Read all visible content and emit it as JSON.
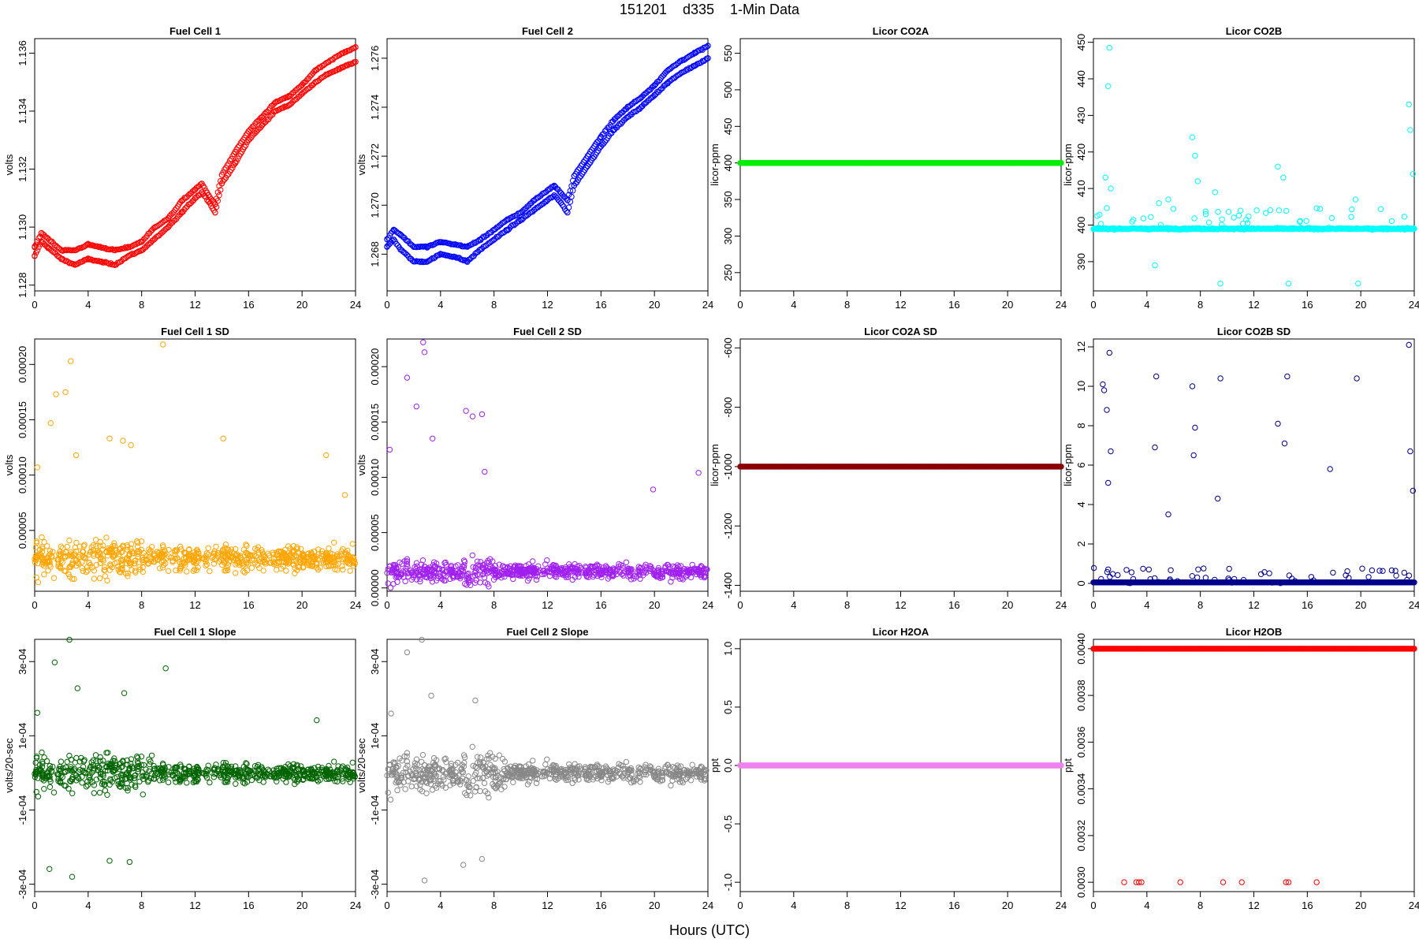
{
  "page": {
    "title": "151201    d335    1-Min Data",
    "xlabel": "Hours (UTC)"
  },
  "chart_data": [
    {
      "type": "scatter",
      "title": "Fuel Cell 1",
      "ylabel": "volts",
      "color": "#FF0000",
      "xlim": [
        0,
        24
      ],
      "ylim": [
        1.1278,
        1.1365
      ],
      "xticks": [
        0,
        4,
        8,
        12,
        16,
        20,
        24
      ],
      "yticks": [
        1.128,
        1.13,
        1.132,
        1.134,
        1.136
      ],
      "ytick_labels": [
        "1.128",
        "1.130",
        "1.132",
        "1.134",
        "1.136"
      ],
      "series": [
        {
          "x": [
            0,
            0.5,
            1,
            2,
            3,
            4,
            5,
            6,
            7,
            8,
            9,
            10,
            11,
            12,
            12.5,
            13,
            13.5,
            14,
            15,
            16,
            17,
            18,
            19,
            20,
            21,
            22,
            23,
            24
          ],
          "y": [
            1.129,
            1.1295,
            1.1293,
            1.1289,
            1.1287,
            1.1289,
            1.1288,
            1.1287,
            1.129,
            1.1292,
            1.1296,
            1.13,
            1.1305,
            1.131,
            1.1312,
            1.1309,
            1.1305,
            1.1315,
            1.1322,
            1.133,
            1.1335,
            1.134,
            1.1342,
            1.1346,
            1.135,
            1.1353,
            1.1355,
            1.1357
          ]
        },
        {
          "x": [
            0,
            0.5,
            1,
            2,
            3,
            4,
            5,
            6,
            7,
            8,
            9,
            10,
            11,
            12,
            12.5,
            13,
            13.5,
            14,
            15,
            16,
            17,
            18,
            19,
            20,
            21,
            22,
            23,
            24
          ],
          "y": [
            1.1293,
            1.1298,
            1.1296,
            1.1292,
            1.1292,
            1.1294,
            1.1293,
            1.1292,
            1.1293,
            1.1295,
            1.13,
            1.1303,
            1.1309,
            1.1313,
            1.1315,
            1.1311,
            1.1308,
            1.1318,
            1.1326,
            1.1333,
            1.1338,
            1.1343,
            1.1345,
            1.1349,
            1.1354,
            1.1357,
            1.136,
            1.1362
          ]
        }
      ]
    },
    {
      "type": "scatter",
      "title": "Fuel Cell 2",
      "ylabel": "volts",
      "color": "#0000FF",
      "xlim": [
        0,
        24
      ],
      "ylim": [
        1.2665,
        1.2768
      ],
      "xticks": [
        0,
        4,
        8,
        12,
        16,
        20,
        24
      ],
      "yticks": [
        1.268,
        1.27,
        1.272,
        1.274,
        1.276
      ],
      "ytick_labels": [
        "1.268",
        "1.270",
        "1.272",
        "1.274",
        "1.276"
      ],
      "series": [
        {
          "x": [
            0,
            0.5,
            1,
            2,
            3,
            4,
            5,
            6,
            7,
            8,
            9,
            10,
            11,
            12,
            12.5,
            13,
            13.5,
            14,
            15,
            16,
            17,
            18,
            19,
            20,
            21,
            22,
            23,
            24
          ],
          "y": [
            1.2683,
            1.2686,
            1.2682,
            1.2677,
            1.2677,
            1.268,
            1.2679,
            1.2677,
            1.2682,
            1.2686,
            1.269,
            1.2694,
            1.2698,
            1.2702,
            1.2704,
            1.2701,
            1.2697,
            1.2708,
            1.2716,
            1.2724,
            1.2731,
            1.2736,
            1.274,
            1.2745,
            1.275,
            1.2754,
            1.2757,
            1.276
          ]
        },
        {
          "x": [
            0,
            0.5,
            1,
            2,
            3,
            4,
            5,
            6,
            7,
            8,
            9,
            10,
            11,
            12,
            12.5,
            13,
            13.5,
            14,
            15,
            16,
            17,
            18,
            19,
            20,
            21,
            22,
            23,
            24
          ],
          "y": [
            1.2686,
            1.269,
            1.2688,
            1.2683,
            1.2683,
            1.2685,
            1.2684,
            1.2683,
            1.2686,
            1.269,
            1.2694,
            1.2697,
            1.2702,
            1.2706,
            1.2708,
            1.2705,
            1.2702,
            1.2712,
            1.272,
            1.2728,
            1.2735,
            1.274,
            1.2744,
            1.2749,
            1.2755,
            1.2759,
            1.2762,
            1.2765
          ]
        }
      ]
    },
    {
      "type": "scatter",
      "title": "Licor CO2A",
      "ylabel": "licor-ppm",
      "color": "#00EE00",
      "xlim": [
        0,
        24
      ],
      "ylim": [
        225,
        570
      ],
      "xticks": [
        0,
        4,
        8,
        12,
        16,
        20,
        24
      ],
      "yticks": [
        250,
        300,
        350,
        400,
        450,
        500,
        550
      ],
      "ytick_labels": [
        "250",
        "300",
        "350",
        "400",
        "450",
        "500",
        "550"
      ],
      "series": [
        {
          "x": [
            0,
            24
          ],
          "y": [
            400,
            400
          ]
        }
      ]
    },
    {
      "type": "scatter",
      "title": "Licor CO2B",
      "ylabel": "licor-ppm",
      "color": "#00FFFF",
      "xlim": [
        0,
        24
      ],
      "ylim": [
        382,
        451
      ],
      "xticks": [
        0,
        4,
        8,
        12,
        16,
        20,
        24
      ],
      "yticks": [
        390,
        400,
        410,
        420,
        430,
        440,
        450
      ],
      "ytick_labels": [
        "390",
        "400",
        "410",
        "420",
        "430",
        "440",
        "450"
      ],
      "series": [
        {
          "x": [
            0,
            24
          ],
          "y": [
            399,
            399
          ]
        },
        {
          "x": [
            0.9,
            1.1,
            1.2,
            1.3,
            4.6,
            4.9,
            5.6,
            7.4,
            7.6,
            7.8,
            8.4,
            9.1,
            9.5,
            13.8,
            14.2,
            14.6,
            19.6,
            19.8,
            23.6,
            23.7,
            23.9
          ],
          "y": [
            413,
            438,
            448.5,
            410,
            389,
            406,
            407,
            424,
            419,
            412,
            403,
            409,
            384,
            416,
            413,
            384,
            407,
            384,
            433,
            426,
            414
          ]
        }
      ]
    },
    {
      "type": "scatter",
      "title": "Fuel Cell 1 SD",
      "ylabel": "volts",
      "color": "#FFA500",
      "xlim": [
        0,
        24
      ],
      "ylim": [
        -5e-06,
        0.000223
      ],
      "xticks": [
        0,
        4,
        8,
        12,
        16,
        20,
        24
      ],
      "yticks": [
        5e-05,
        0.0001,
        0.00015,
        0.0002
      ],
      "ytick_labels": [
        "0.00005",
        "0.00010",
        "0.00015",
        "0.00020"
      ],
      "series": [
        {
          "x": [
            0.2,
            1.2,
            1.6,
            2.3,
            2.7,
            3.1,
            5.6,
            6.6,
            7.2,
            9.6,
            14.1,
            21.8,
            23.2
          ],
          "y": [
            0.000107,
            0.000147,
            0.000173,
            0.000175,
            0.000203,
            0.000118,
            0.000133,
            0.000131,
            0.000127,
            0.000218,
            0.000133,
            0.000118,
            8.2e-05
          ]
        }
      ]
    },
    {
      "type": "scatter",
      "title": "Fuel Cell 2 SD",
      "ylabel": "volts",
      "color": "#A020F0",
      "xlim": [
        0,
        24
      ],
      "ylim": [
        -3e-06,
        0.000225
      ],
      "xticks": [
        0,
        4,
        8,
        12,
        16,
        20,
        24
      ],
      "yticks": [
        0.0,
        5e-05,
        0.0001,
        0.00015,
        0.0002
      ],
      "ytick_labels": [
        "0.00000",
        "0.00005",
        "0.00010",
        "0.00015",
        "0.00020"
      ],
      "series": [
        {
          "x": [
            0.2,
            1.5,
            2.2,
            2.7,
            2.8,
            3.4,
            5.9,
            6.4,
            7.1,
            7.3,
            19.9,
            23.3
          ],
          "y": [
            0.000125,
            0.00019,
            0.000164,
            0.000222,
            0.000213,
            0.000135,
            0.00016,
            0.000155,
            0.000157,
            0.000105,
            8.9e-05,
            0.000104
          ]
        }
      ]
    },
    {
      "type": "scatter",
      "title": "Licor CO2A SD",
      "ylabel": "licor-ppm",
      "color": "#8B0000",
      "xlim": [
        0,
        24
      ],
      "ylim": [
        -1420,
        -570
      ],
      "xticks": [
        0,
        4,
        8,
        12,
        16,
        20,
        24
      ],
      "yticks": [
        -1400,
        -1200,
        -1000,
        -800,
        -600
      ],
      "ytick_labels": [
        "-1400",
        "-1200",
        "-1000",
        "-800",
        "-600"
      ],
      "series": [
        {
          "x": [
            0,
            24
          ],
          "y": [
            -1000,
            -1000
          ]
        }
      ]
    },
    {
      "type": "scatter",
      "title": "Licor CO2B SD",
      "ylabel": "licor-ppm",
      "color": "#00008B",
      "xlim": [
        0,
        24
      ],
      "ylim": [
        -0.4,
        12.4
      ],
      "xticks": [
        0,
        4,
        8,
        12,
        16,
        20,
        24
      ],
      "yticks": [
        0,
        2,
        4,
        6,
        8,
        10,
        12
      ],
      "ytick_labels": [
        "0",
        "2",
        "4",
        "6",
        "8",
        "10",
        "12"
      ],
      "series": [
        {
          "x": [
            0,
            24
          ],
          "y": [
            0.05,
            0.05
          ]
        },
        {
          "x": [
            0.7,
            0.8,
            1.0,
            1.1,
            1.2,
            1.3,
            4.6,
            4.7,
            5.6,
            7.4,
            7.5,
            7.6,
            9.3,
            9.5,
            13.8,
            14.3,
            14.5,
            17.7,
            19.7,
            23.6,
            23.7,
            23.9
          ],
          "y": [
            10.1,
            9.8,
            8.8,
            5.1,
            11.7,
            6.7,
            6.9,
            10.5,
            3.5,
            10.0,
            6.5,
            7.9,
            4.3,
            10.4,
            8.1,
            7.1,
            10.5,
            5.8,
            10.4,
            12.1,
            6.7,
            4.7
          ]
        }
      ]
    },
    {
      "type": "scatter",
      "title": "Fuel Cell 1 Slope",
      "ylabel": "volts/20-sec",
      "color": "#006400",
      "xlim": [
        0,
        24
      ],
      "ylim": [
        -0.00032,
        0.00036
      ],
      "xticks": [
        0,
        4,
        8,
        12,
        16,
        20,
        24
      ],
      "yticks": [
        -0.0003,
        -0.0001,
        0.0001,
        0.0003
      ],
      "ytick_labels": [
        "-3e-04",
        "-1e-04",
        "1e-04",
        "3e-04"
      ],
      "series": [
        {
          "x": [
            0.2,
            1.1,
            1.5,
            2.6,
            2.8,
            3.2,
            5.6,
            6.7,
            7.1,
            9.8,
            21.1
          ],
          "y": [
            0.000162,
            -0.000259,
            0.000298,
            0.000359,
            -0.00028,
            0.000228,
            -0.000237,
            0.000215,
            -0.00024,
            0.000282,
            0.000142
          ]
        }
      ]
    },
    {
      "type": "scatter",
      "title": "Fuel Cell 2 Slope",
      "ylabel": "volts/20-sec",
      "color": "#888888",
      "xlim": [
        0,
        24
      ],
      "ylim": [
        -0.00032,
        0.00036
      ],
      "xticks": [
        0,
        4,
        8,
        12,
        16,
        20,
        24
      ],
      "yticks": [
        -0.0003,
        -0.0001,
        0.0001,
        0.0003
      ],
      "ytick_labels": [
        "-3e-04",
        "-1e-04",
        "1e-04",
        "3e-04"
      ],
      "series": [
        {
          "x": [
            0.3,
            1.5,
            2.6,
            2.8,
            3.3,
            5.7,
            6.6,
            7.1
          ],
          "y": [
            0.00016,
            0.000325,
            0.000359,
            -0.00029,
            0.000208,
            -0.000248,
            0.000195,
            -0.000232
          ]
        }
      ]
    },
    {
      "type": "scatter",
      "title": "Licor H2OA",
      "ylabel": "ppt",
      "color": "#EE82EE",
      "xlim": [
        0,
        24
      ],
      "ylim": [
        -1.08,
        1.08
      ],
      "xticks": [
        0,
        4,
        8,
        12,
        16,
        20,
        24
      ],
      "yticks": [
        -1.0,
        -0.5,
        0.0,
        0.5,
        1.0
      ],
      "ytick_labels": [
        "-1.0",
        "-0.5",
        "0.0",
        "0.5",
        "1.0"
      ],
      "series": [
        {
          "x": [
            0,
            24
          ],
          "y": [
            0,
            0
          ]
        }
      ]
    },
    {
      "type": "scatter",
      "title": "Licor H2OB",
      "ylabel": "ppt",
      "color": "#FF0000",
      "xlim": [
        0,
        24
      ],
      "ylim": [
        0.00296,
        0.00404
      ],
      "xticks": [
        0,
        4,
        8,
        12,
        16,
        20,
        24
      ],
      "yticks": [
        0.003,
        0.0032,
        0.0034,
        0.0036,
        0.0038,
        0.004
      ],
      "ytick_labels": [
        "0.0030",
        "0.0032",
        "0.0034",
        "0.0036",
        "0.0038",
        "0.0040"
      ],
      "series": [
        {
          "x": [
            0,
            24
          ],
          "y": [
            0.004,
            0.004
          ]
        },
        {
          "x": [
            2.3,
            3.2,
            3.4,
            3.6,
            6.5,
            9.7,
            11.1,
            14.4,
            14.6,
            16.7
          ],
          "y": [
            0.003,
            0.003,
            0.003,
            0.003,
            0.003,
            0.003,
            0.003,
            0.003,
            0.003,
            0.003
          ]
        }
      ]
    }
  ]
}
